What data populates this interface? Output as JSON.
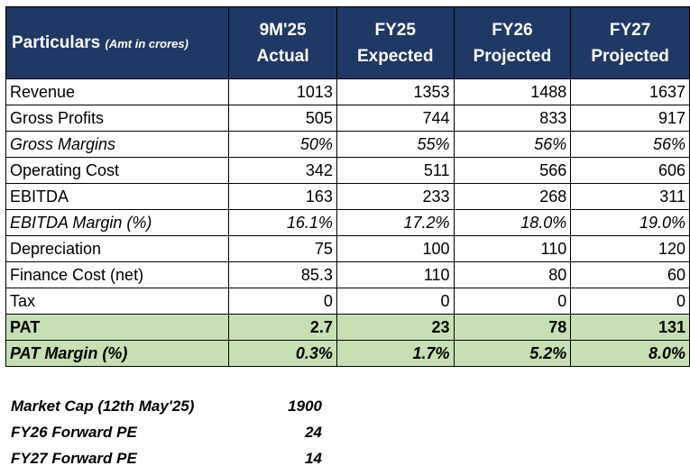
{
  "header": {
    "particulars": "Particulars",
    "particulars_sub": "(Amt in crores)",
    "cols": [
      {
        "l1": "9M'25",
        "l2": "Actual"
      },
      {
        "l1": "FY25",
        "l2": "Expected"
      },
      {
        "l1": "FY26",
        "l2": "Projected"
      },
      {
        "l1": "FY27",
        "l2": "Projected"
      }
    ]
  },
  "rows": [
    {
      "label": "Revenue",
      "values": [
        "1013",
        "1353",
        "1488",
        "1637"
      ]
    },
    {
      "label": "Gross Profits",
      "values": [
        "505",
        "744",
        "833",
        "917"
      ]
    },
    {
      "label": "Gross Margins",
      "values": [
        "50%",
        "55%",
        "56%",
        "56%"
      ]
    },
    {
      "label": "Operating Cost",
      "values": [
        "342",
        "511",
        "566",
        "606"
      ]
    },
    {
      "label": "EBITDA",
      "values": [
        "163",
        "233",
        "268",
        "311"
      ]
    },
    {
      "label": "EBITDA Margin (%)",
      "values": [
        "16.1%",
        "17.2%",
        "18.0%",
        "19.0%"
      ]
    },
    {
      "label": "Depreciation",
      "values": [
        "75",
        "100",
        "110",
        "120"
      ]
    },
    {
      "label": "Finance Cost (net)",
      "values": [
        "85.3",
        "110",
        "80",
        "60"
      ]
    },
    {
      "label": "Tax",
      "values": [
        "0",
        "0",
        "0",
        "0"
      ]
    },
    {
      "label": "PAT",
      "values": [
        "2.7",
        "23",
        "78",
        "131"
      ]
    },
    {
      "label": "PAT Margin (%)",
      "values": [
        "0.3%",
        "1.7%",
        "5.2%",
        "8.0%"
      ]
    }
  ],
  "metrics": [
    {
      "label": "Market Cap (12th May'25)",
      "value": "1900"
    },
    {
      "label": "FY26 Forward PE",
      "value": "24"
    },
    {
      "label": "FY27 Forward PE",
      "value": "14"
    }
  ],
  "colors": {
    "header_bg": "#203864",
    "highlight_bg": "#c6e0b4"
  }
}
